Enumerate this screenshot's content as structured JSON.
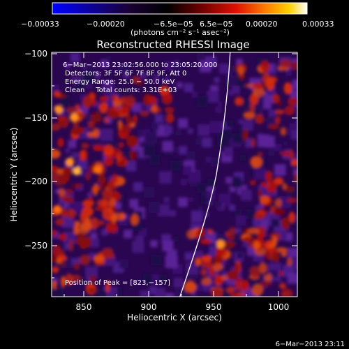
{
  "colorbar": {
    "ticks": [
      "−0.00033",
      "−0.00020",
      "−6.5e−05",
      "6.5e−05",
      "0.00020",
      "0.00033"
    ],
    "unit_label": "(photons cm⁻² s⁻¹ asec⁻²)",
    "colors": [
      "#0000ff",
      "#1b0030",
      "#000000",
      "#5a0000",
      "#d40000",
      "#ff7a00",
      "#ffcc00",
      "#ffffff"
    ]
  },
  "title": "Reconstructed RHESSI Image",
  "info": {
    "time_range": "6−Mar−2013 23:02:56.000 to 23:05:20.000",
    "detectors": "Detectors: 3F 5F 6F 7F 8F 9F, Att 0",
    "energy_range": "Energy Range: 25.0 − 50.0 keV",
    "clean": "Clean     Total counts: 3.31E+03"
  },
  "peak_label": "Position of Peak = [823,−157]",
  "x_axis": {
    "label": "Heliocentric X (arcsec)",
    "range": [
      825,
      1015
    ],
    "tick_labels": [
      "850",
      "900",
      "950",
      "1000"
    ]
  },
  "y_axis": {
    "label": "Heliocentric Y (arcsec)",
    "range": [
      -290,
      -97
    ],
    "tick_labels": [
      "−100",
      "−150",
      "−200",
      "−250"
    ]
  },
  "limb_color": "#ffffff",
  "timestamp": "6−Mar−2013 23:11"
}
